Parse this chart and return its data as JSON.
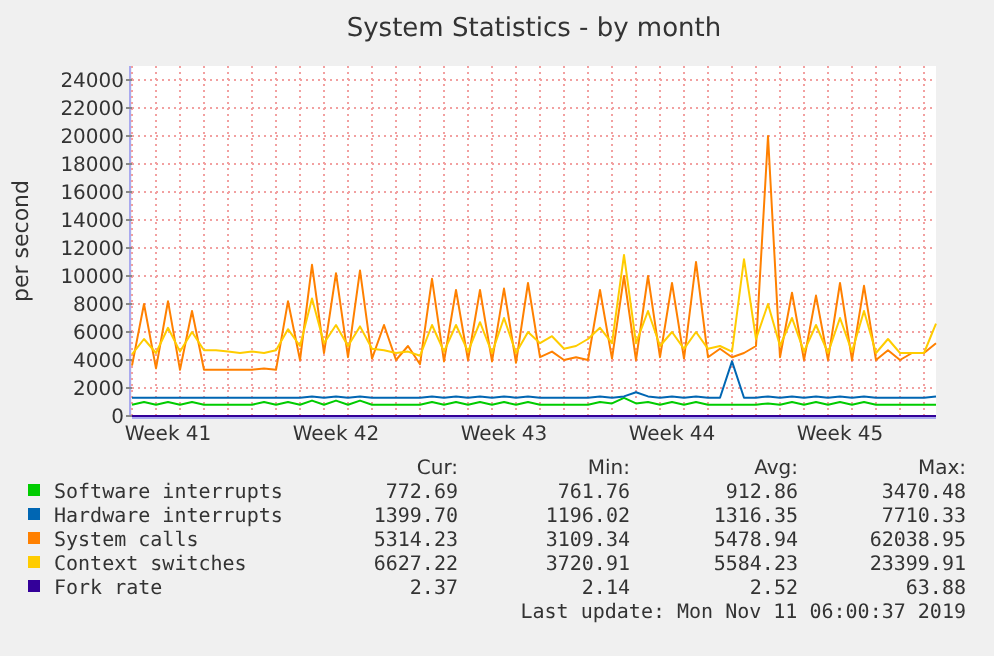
{
  "chart_data": {
    "type": "line",
    "title": "System Statistics - by month",
    "ylabel": "per second",
    "categories": [
      null,
      null,
      null,
      "Week 41",
      null,
      null,
      null,
      null,
      null,
      null,
      null,
      null,
      null,
      null,
      null,
      null,
      null,
      "Week 42",
      null,
      null,
      null,
      null,
      null,
      null,
      null,
      null,
      null,
      null,
      null,
      null,
      null,
      "Week 43",
      null,
      null,
      null,
      null,
      null,
      null,
      null,
      null,
      null,
      null,
      null,
      null,
      null,
      "Week 44",
      null,
      null,
      null,
      null,
      null,
      null,
      null,
      null,
      null,
      null,
      null,
      null,
      null,
      "Week 45",
      null,
      null,
      null,
      null,
      null,
      null,
      null,
      null
    ],
    "ylim": [
      0,
      25000
    ],
    "yticks": [
      0,
      2000,
      4000,
      6000,
      8000,
      10000,
      12000,
      14000,
      16000,
      18000,
      20000,
      22000,
      24000
    ],
    "grid": true,
    "legend": "bottom",
    "series": [
      {
        "name": "Software interrupts",
        "color": "#00cc00",
        "values": [
          800,
          1000,
          800,
          1000,
          800,
          1000,
          800,
          800,
          800,
          800,
          800,
          1000,
          800,
          1000,
          800,
          1100,
          800,
          1100,
          800,
          1100,
          800,
          800,
          800,
          800,
          800,
          1000,
          800,
          1000,
          800,
          1000,
          800,
          1000,
          800,
          1000,
          800,
          800,
          800,
          800,
          800,
          1000,
          900,
          1300,
          900,
          1000,
          800,
          1000,
          800,
          1000,
          800,
          800,
          800,
          800,
          800,
          900,
          800,
          1000,
          800,
          1000,
          800,
          1000,
          800,
          1000,
          800,
          800,
          800,
          800,
          800,
          800
        ]
      },
      {
        "name": "Hardware interrupts",
        "color": "#0066b3",
        "values": [
          1300,
          1300,
          1300,
          1300,
          1300,
          1300,
          1300,
          1300,
          1300,
          1300,
          1300,
          1300,
          1300,
          1300,
          1300,
          1400,
          1300,
          1400,
          1300,
          1400,
          1300,
          1300,
          1300,
          1300,
          1300,
          1400,
          1300,
          1400,
          1300,
          1400,
          1300,
          1400,
          1300,
          1400,
          1300,
          1300,
          1300,
          1300,
          1300,
          1400,
          1300,
          1400,
          1700,
          1400,
          1300,
          1400,
          1300,
          1400,
          1300,
          1300,
          3900,
          1300,
          1300,
          1400,
          1300,
          1400,
          1300,
          1400,
          1300,
          1400,
          1300,
          1400,
          1300,
          1300,
          1300,
          1300,
          1300,
          1400
        ]
      },
      {
        "name": "System calls",
        "color": "#ff8000",
        "values": [
          3600,
          8000,
          3400,
          8200,
          3300,
          7500,
          3300,
          3300,
          3300,
          3300,
          3300,
          3400,
          3300,
          8200,
          4000,
          10800,
          4500,
          10200,
          4200,
          10400,
          4100,
          6500,
          4000,
          5000,
          3700,
          9800,
          3900,
          9000,
          4000,
          9000,
          3900,
          9100,
          3800,
          9500,
          4200,
          4600,
          4000,
          4200,
          4000,
          9000,
          4100,
          10000,
          4000,
          10000,
          4200,
          9500,
          4100,
          11000,
          4200,
          4800,
          4200,
          4500,
          5000,
          20000,
          4200,
          8800,
          4000,
          8600,
          4000,
          9500,
          4000,
          9300,
          4000,
          4700,
          4000,
          4500,
          4500,
          5200
        ]
      },
      {
        "name": "Context switches",
        "color": "#ffcc00",
        "values": [
          4400,
          5500,
          4500,
          6300,
          4600,
          6000,
          4700,
          4700,
          4600,
          4500,
          4600,
          4500,
          4700,
          6200,
          5000,
          8400,
          5200,
          6500,
          5000,
          6400,
          4800,
          4700,
          4500,
          4600,
          4300,
          6500,
          4600,
          6500,
          4600,
          6700,
          4500,
          7000,
          4500,
          6000,
          5200,
          5700,
          4800,
          5000,
          5500,
          6300,
          5200,
          11500,
          5200,
          7500,
          5000,
          6000,
          4800,
          6000,
          4800,
          5000,
          4600,
          11200,
          5500,
          8000,
          5000,
          7000,
          4600,
          6500,
          4500,
          7000,
          4600,
          7500,
          4500,
          5500,
          4500,
          4500,
          4500,
          6600
        ]
      },
      {
        "name": "Fork rate",
        "color": "#330099",
        "values": [
          0,
          0,
          0,
          0,
          0,
          0,
          0,
          0,
          0,
          0,
          0,
          0,
          0,
          0,
          0,
          0,
          0,
          0,
          0,
          0,
          0,
          0,
          0,
          0,
          0,
          0,
          0,
          0,
          0,
          0,
          0,
          0,
          0,
          0,
          0,
          0,
          0,
          0,
          0,
          0,
          0,
          0,
          0,
          0,
          0,
          0,
          0,
          0,
          0,
          0,
          0,
          0,
          0,
          0,
          0,
          0,
          0,
          0,
          0,
          0,
          0,
          0,
          0,
          0,
          0,
          0,
          0,
          0
        ]
      }
    ],
    "annotations": [
      "Cur:",
      "Min:",
      "Avg:",
      "Max:",
      "772.69",
      "761.76",
      "912.86",
      "3470.48",
      "1399.70",
      "1196.02",
      "1316.35",
      "7710.33",
      "5314.23",
      "3109.34",
      "5478.94",
      "62038.95",
      "6627.22",
      "3720.91",
      "5584.23",
      "23399.91",
      "2.37",
      "2.14",
      "2.52",
      "63.88",
      "Last update: Mon Nov 11 06:00:37 2019"
    ]
  }
}
